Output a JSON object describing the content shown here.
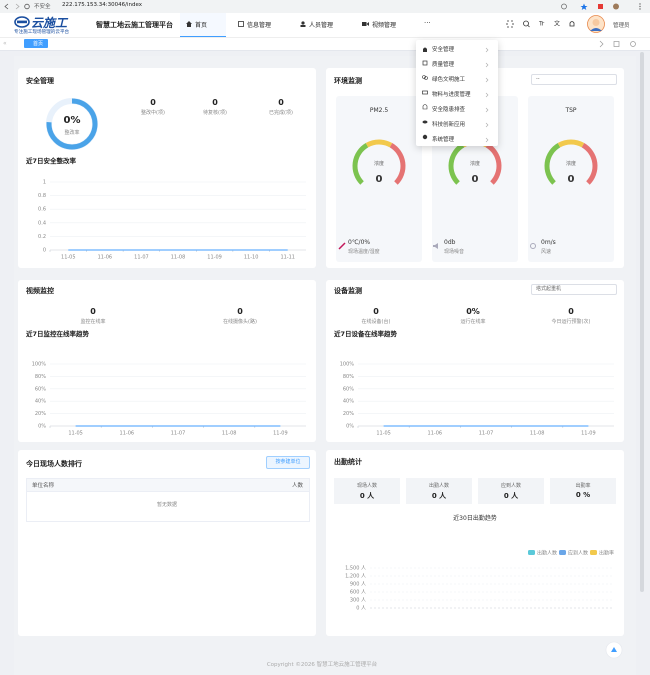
{
  "browser": {
    "security": "不安全",
    "url": "222.175.153.34:30046/index"
  },
  "header": {
    "logo": "云施工",
    "slogan": "专注施工现场管理的云平台",
    "title": "智慧工地云施工管理平台",
    "nav": [
      "首页",
      "信息管理",
      "人员管理",
      "视频管理",
      "···"
    ],
    "user": "管理员"
  },
  "tabs": [
    "首页"
  ],
  "menu": [
    "安全管理",
    "质量管理",
    "绿色文明施工",
    "物料与进度管理",
    "安全隐患排查",
    "科技创新应用",
    "系统管理"
  ],
  "safety": {
    "title": "安全管理",
    "rate": "0%",
    "rate_label": "整改率",
    "stats": [
      {
        "value": "0",
        "label": "整改中(项)"
      },
      {
        "value": "0",
        "label": "待复核(项)"
      },
      {
        "value": "0",
        "label": "已完成(项)"
      }
    ],
    "chart": {
      "type": "line",
      "title": "近7日安全整改率",
      "x": [
        "11-05",
        "11-06",
        "11-07",
        "11-08",
        "11-09",
        "11-10",
        "11-11"
      ],
      "series": [
        {
          "color": "#409eff",
          "values": [
            0,
            0,
            0,
            0,
            0,
            0,
            0
          ]
        }
      ],
      "ylim": [
        0,
        1
      ],
      "yticks": [
        0,
        0.2,
        0.4,
        0.6,
        0.8,
        1
      ]
    }
  },
  "environment": {
    "title": "环境监测",
    "select": "--",
    "gauges": [
      {
        "name": "PM2.5",
        "label": "浓度",
        "value": "0"
      },
      {
        "label": "浓度",
        "value": "0"
      },
      {
        "name": "TSP",
        "label": "浓度",
        "value": "0"
      }
    ],
    "readings": [
      {
        "value": "0℃/0%",
        "label": "现场温度/湿度"
      },
      {
        "value": "0db",
        "label": "现场噪音"
      },
      {
        "value": "0m/s",
        "label": "风速"
      }
    ]
  },
  "video": {
    "title": "视频监控",
    "stats": [
      {
        "value": "0",
        "label": "监控在线率"
      },
      {
        "value": "0",
        "label": "在线摄像头(路)"
      }
    ],
    "chart": {
      "type": "line",
      "title": "近7日监控在线率趋势",
      "x": [
        "11-05",
        "11-06",
        "11-07",
        "11-08",
        "11-09"
      ],
      "series": [
        {
          "color": "#409eff",
          "values": [
            0,
            0,
            0,
            0,
            0
          ]
        }
      ],
      "ylim": [
        0,
        100
      ],
      "yticks": [
        {
          "value": 0,
          "label": "0%"
        },
        {
          "value": 20,
          "label": "20%"
        },
        {
          "value": 40,
          "label": "40%"
        },
        {
          "value": 60,
          "label": "60%"
        },
        {
          "value": 80,
          "label": "80%"
        },
        {
          "value": 100,
          "label": "100%"
        }
      ]
    }
  },
  "device": {
    "title": "设备监测",
    "select": "塔式起重机",
    "stats": [
      {
        "value": "0",
        "label": "在线设备(台)"
      },
      {
        "value": "0%",
        "label": "运行在线率"
      },
      {
        "value": "0",
        "label": "今日运行预警(次)"
      }
    ],
    "chart": {
      "type": "line",
      "title": "近7日设备在线率趋势",
      "x": [
        "11-05",
        "11-06",
        "11-07",
        "11-08",
        "11-09"
      ],
      "series": [
        {
          "color": "#409eff",
          "values": [
            0,
            0,
            0,
            0,
            0
          ]
        }
      ],
      "ylim": [
        0,
        100
      ],
      "yticks": [
        {
          "value": 0,
          "label": "0%"
        },
        {
          "value": 20,
          "label": "20%"
        },
        {
          "value": 40,
          "label": "40%"
        },
        {
          "value": 60,
          "label": "60%"
        },
        {
          "value": 80,
          "label": "80%"
        },
        {
          "value": 100,
          "label": "100%"
        }
      ]
    }
  },
  "ranking": {
    "title": "今日现场人数排行",
    "button": "按参建单位",
    "columns": [
      "单位名称",
      "人数"
    ],
    "empty": "暂无数据"
  },
  "attendance": {
    "title": "出勤统计",
    "stats": [
      {
        "label": "现场人数",
        "value": "0 人"
      },
      {
        "label": "出勤人数",
        "value": "0 人"
      },
      {
        "label": "应到人数",
        "value": "0 人"
      },
      {
        "label": "出勤率",
        "value": "0 %"
      }
    ],
    "chart": {
      "type": "line",
      "title": "近30日出勤趋势",
      "series": [
        {
          "name": "出勤人数",
          "color": "#5bc9d9"
        },
        {
          "name": "应到人数",
          "color": "#6aa6e8"
        },
        {
          "name": "出勤率",
          "color": "#f2c94c"
        }
      ],
      "ylim": [
        0,
        1500
      ],
      "yticks": [
        {
          "value": 0,
          "label": "0 人"
        },
        {
          "value": 300,
          "label": "300 人"
        },
        {
          "value": 600,
          "label": "600 人"
        },
        {
          "value": 900,
          "label": "900 人"
        },
        {
          "value": 1200,
          "label": "1,200 人"
        },
        {
          "value": 1500,
          "label": "1,500 人"
        }
      ]
    }
  },
  "footer": "Copyright ©2026 智慧工地云施工管理平台"
}
